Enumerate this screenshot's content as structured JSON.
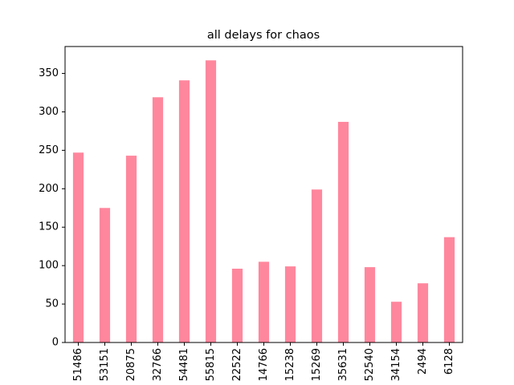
{
  "chart_data": {
    "type": "bar",
    "title": "all delays for chaos",
    "xlabel": "",
    "ylabel": "",
    "categories": [
      "51486",
      "53151",
      "20875",
      "32766",
      "54481",
      "55815",
      "22522",
      "14766",
      "15238",
      "15269",
      "35631",
      "52540",
      "34154",
      "2494",
      "6128"
    ],
    "values": [
      247,
      175,
      243,
      319,
      341,
      367,
      96,
      105,
      99,
      199,
      287,
      98,
      53,
      77,
      137
    ],
    "ylim": [
      0,
      385
    ],
    "yticks": [
      0,
      50,
      100,
      150,
      200,
      250,
      300,
      350
    ],
    "bar_color": "#ff879d",
    "grid": false,
    "legend": "none"
  }
}
